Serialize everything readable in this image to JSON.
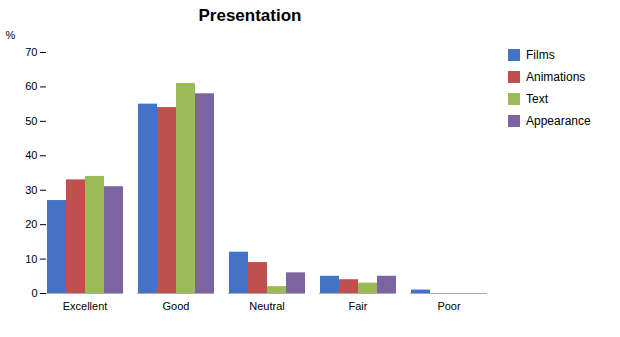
{
  "chart_data": {
    "type": "bar",
    "title": "Presentation",
    "ylabel": "%",
    "categories": [
      "Excellent",
      "Good",
      "Neutral",
      "Fair",
      "Poor"
    ],
    "series": [
      {
        "name": "Films",
        "color": "#4472C4",
        "values": [
          27,
          55,
          12,
          5,
          1
        ]
      },
      {
        "name": "Animations",
        "color": "#C0504D",
        "values": [
          33,
          54,
          9,
          4,
          0
        ]
      },
      {
        "name": "Text",
        "color": "#9BBB59",
        "values": [
          34,
          61,
          2,
          3,
          0
        ]
      },
      {
        "name": "Appearance",
        "color": "#7B64A0",
        "values": [
          31,
          58,
          6,
          5,
          0
        ]
      }
    ],
    "ylim": [
      0,
      70
    ],
    "yticks": [
      0,
      10,
      20,
      30,
      40,
      50,
      60,
      70
    ],
    "grid": false,
    "legend": "right"
  }
}
